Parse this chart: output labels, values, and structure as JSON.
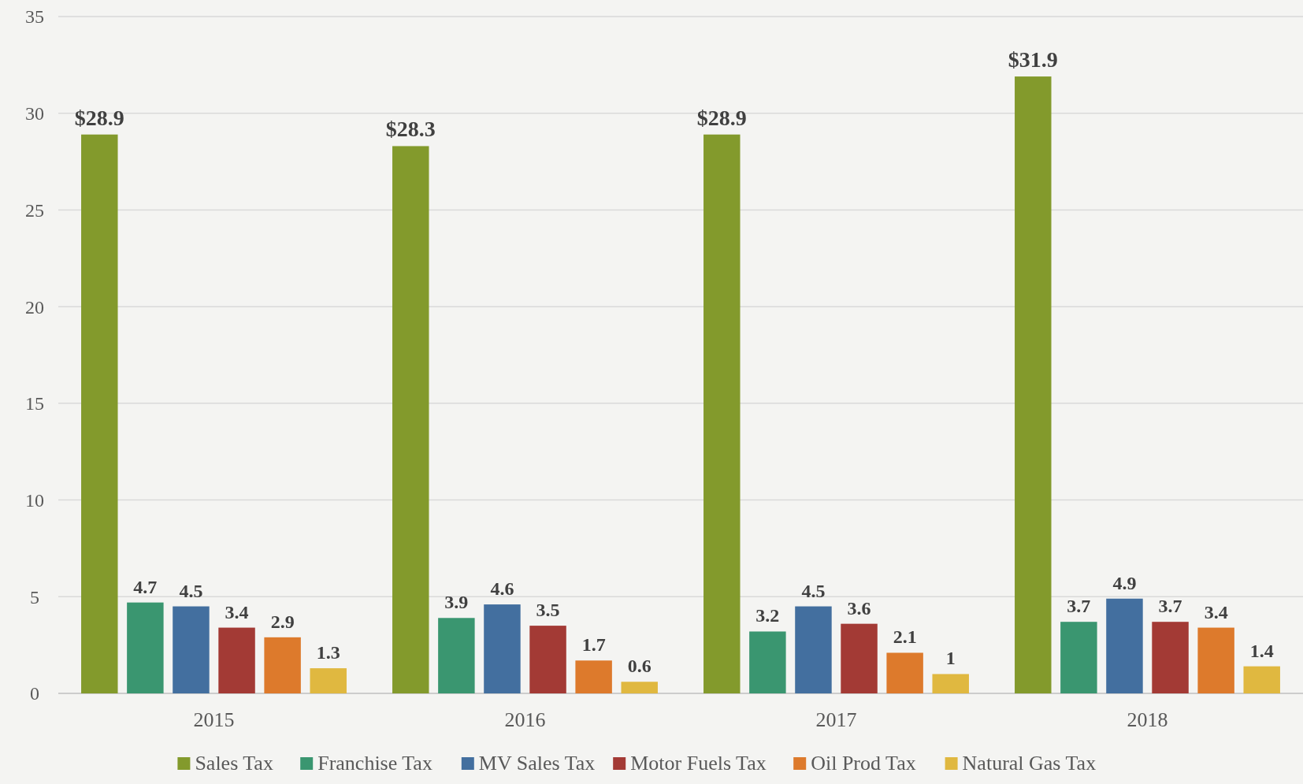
{
  "chart_data": {
    "type": "bar",
    "categories": [
      "2015",
      "2016",
      "2017",
      "2018"
    ],
    "series": [
      {
        "name": "Sales Tax",
        "color": "#839a2c",
        "values": [
          28.9,
          28.3,
          28.9,
          31.9
        ],
        "value_labels": [
          "$28.9",
          "$28.3",
          "$28.9",
          "$31.9"
        ]
      },
      {
        "name": "Franchise Tax",
        "color": "#3a9670",
        "values": [
          4.7,
          3.9,
          3.2,
          3.7
        ],
        "value_labels": [
          "4.7",
          "3.9",
          "3.2",
          "3.7"
        ]
      },
      {
        "name": "MV Sales Tax",
        "color": "#436f9f",
        "values": [
          4.5,
          4.6,
          4.5,
          4.9
        ],
        "value_labels": [
          "4.5",
          "4.6",
          "4.5",
          "4.9"
        ]
      },
      {
        "name": "Motor Fuels Tax",
        "color": "#a33a35",
        "values": [
          3.4,
          3.5,
          3.6,
          3.7
        ],
        "value_labels": [
          "3.4",
          "3.5",
          "3.6",
          "3.7"
        ]
      },
      {
        "name": "Oil Prod Tax",
        "color": "#dd7a2c",
        "values": [
          2.9,
          1.7,
          2.1,
          3.4
        ],
        "value_labels": [
          "2.9",
          "1.7",
          "2.1",
          "3.4"
        ]
      },
      {
        "name": "Natural Gas Tax",
        "color": "#e0b840",
        "values": [
          1.3,
          0.6,
          1,
          1.4
        ],
        "value_labels": [
          "1.3",
          "0.6",
          "1",
          "1.4"
        ]
      }
    ],
    "ylim": [
      0,
      35
    ],
    "yticks": [
      0,
      5,
      10,
      15,
      20,
      25,
      30,
      35
    ],
    "grid": "y",
    "legend": "bottom"
  }
}
